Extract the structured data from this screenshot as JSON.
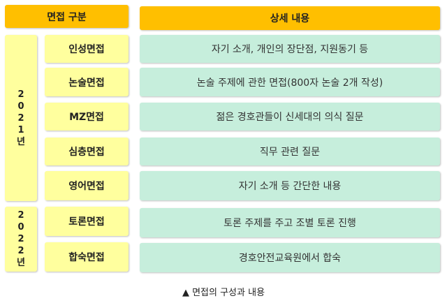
{
  "header": {
    "category": "면접 구분",
    "detail": "상세 내용"
  },
  "groups": [
    {
      "year_chars": [
        "2",
        "0",
        "2",
        "1",
        "년"
      ]
    },
    {
      "year_chars": [
        "2",
        "0",
        "2",
        "2",
        "년"
      ]
    }
  ],
  "rows": [
    {
      "name": "인성면접",
      "detail": "자기 소개, 개인의 장단점, 지원동기 등"
    },
    {
      "name": "논술면접",
      "detail": "논술 주제에 관한 면접(800자 논술 2개 작성)"
    },
    {
      "name": "MZ면접",
      "detail": "젊은 경호관들이 신세대의 의식 질문"
    },
    {
      "name": "심층면접",
      "detail": "직무 관련 질문"
    },
    {
      "name": "영어면접",
      "detail": "자기 소개 등 간단한 내용"
    },
    {
      "name": "토론면접",
      "detail": "토론 주제를 주고 조별 토론 진행"
    },
    {
      "name": "합숙면접",
      "detail": "경호안전교육원에서 합숙"
    }
  ],
  "caption": "▲ 면접의 구성과 내용",
  "colors": {
    "header": "#ffbf00",
    "name_cell": "#ffff9e",
    "detail_cell": "#c6eedc"
  }
}
